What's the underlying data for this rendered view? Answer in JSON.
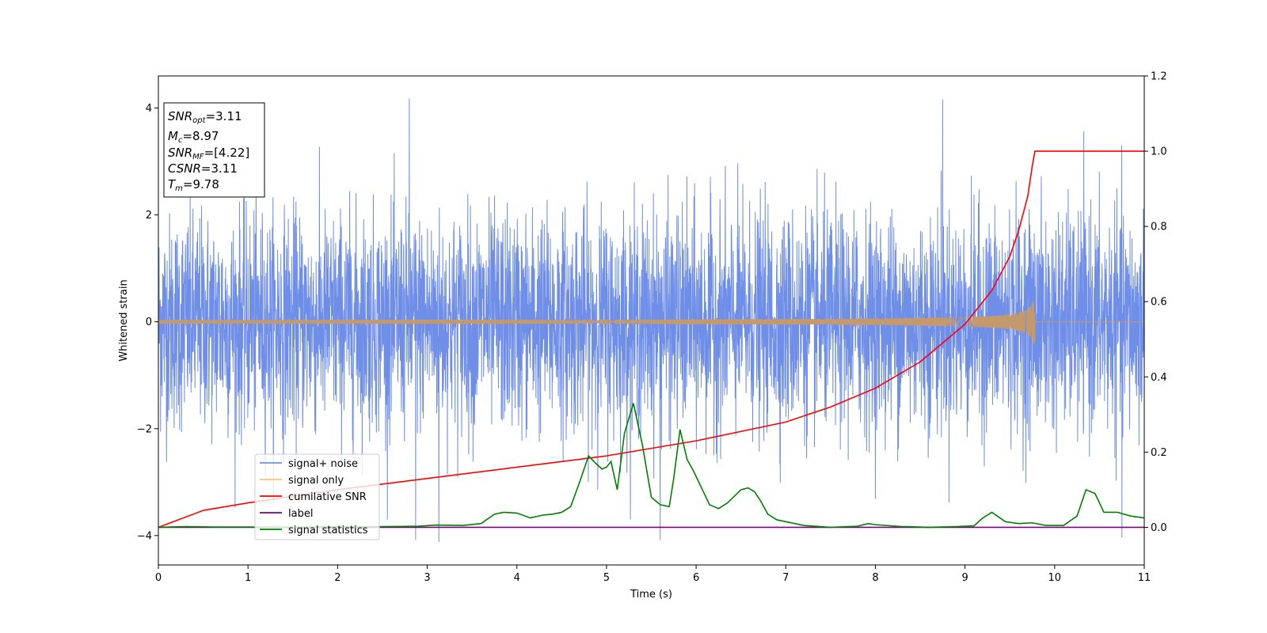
{
  "chart_data": {
    "type": "line",
    "xlabel": "Time (s)",
    "ylabel": "Whitened strain",
    "xlim": [
      0,
      11
    ],
    "ylim": [
      -4.55,
      4.6
    ],
    "y2lim": [
      -0.1,
      1.2
    ],
    "xticks": [
      0,
      1,
      2,
      3,
      4,
      5,
      6,
      7,
      8,
      9,
      10,
      11
    ],
    "yticks": [
      -4,
      -2,
      0,
      2,
      4
    ],
    "y2ticks": [
      0.0,
      0.2,
      0.4,
      0.6,
      0.8,
      1.0,
      1.2
    ],
    "xtick_labels": [
      "0",
      "1",
      "2",
      "3",
      "4",
      "5",
      "6",
      "7",
      "8",
      "9",
      "10",
      "11"
    ],
    "ytick_labels": [
      "−4",
      "−2",
      "0",
      "2",
      "4"
    ],
    "y2tick_labels": [
      "0.0",
      "0.2",
      "0.4",
      "0.6",
      "0.8",
      "1.0",
      "1.2"
    ],
    "legend_position": "lower-left",
    "grid": false,
    "series": [
      {
        "name": "signal+ noise",
        "color": "#6f8ee8",
        "axis": "left",
        "kind": "noise",
        "t_start": 0,
        "t_end": 11,
        "std": 1.0,
        "spikes": [
          [
            2.8,
            4.18
          ],
          [
            8.75,
            4.16
          ],
          [
            3.13,
            -4.12
          ],
          [
            2.87,
            -4.08
          ],
          [
            5.6,
            -4.08
          ],
          [
            10.75,
            -4.04
          ]
        ]
      },
      {
        "name": "signal only",
        "color": "#ffc66b",
        "axis": "left",
        "kind": "chirp",
        "t_start": 0,
        "t_merge": 9.78,
        "peak_amplitude": 0.5
      },
      {
        "name": "cumilative SNR",
        "color": "#ff0000",
        "axis": "right",
        "x": [
          0,
          0.5,
          1,
          2,
          3,
          4,
          5,
          6,
          7,
          7.5,
          8,
          8.5,
          9,
          9.3,
          9.5,
          9.6,
          9.7,
          9.75,
          9.78,
          9.8,
          11
        ],
        "y": [
          0.0,
          0.045,
          0.065,
          0.1,
          0.13,
          0.16,
          0.19,
          0.23,
          0.28,
          0.32,
          0.37,
          0.44,
          0.54,
          0.63,
          0.72,
          0.79,
          0.88,
          0.96,
          1.0,
          1.0,
          1.0
        ]
      },
      {
        "name": "label",
        "color": "#800080",
        "axis": "right",
        "x": [
          0,
          11
        ],
        "y": [
          0.0,
          0.0
        ]
      },
      {
        "name": "signal statistics",
        "color": "#008000",
        "axis": "right",
        "x": [
          0,
          0.3,
          0.6,
          1.0,
          1.5,
          2.0,
          2.5,
          2.9,
          3.1,
          3.4,
          3.6,
          3.75,
          3.85,
          4.0,
          4.15,
          4.3,
          4.4,
          4.5,
          4.6,
          4.7,
          4.8,
          4.88,
          4.95,
          5.0,
          5.05,
          5.12,
          5.2,
          5.3,
          5.4,
          5.5,
          5.6,
          5.7,
          5.75,
          5.82,
          5.9,
          5.97,
          6.05,
          6.15,
          6.25,
          6.35,
          6.5,
          6.58,
          6.65,
          6.72,
          6.8,
          6.9,
          7.0,
          7.2,
          7.5,
          7.8,
          7.92,
          8.0,
          8.3,
          8.6,
          8.9,
          9.1,
          9.2,
          9.3,
          9.45,
          9.6,
          9.75,
          9.9,
          10.1,
          10.25,
          10.35,
          10.45,
          10.55,
          10.7,
          10.85,
          11.0
        ],
        "y": [
          0.0,
          0.002,
          0.001,
          0.001,
          0.0,
          0.002,
          0.002,
          0.003,
          0.006,
          0.005,
          0.01,
          0.035,
          0.04,
          0.038,
          0.025,
          0.033,
          0.035,
          0.04,
          0.055,
          0.12,
          0.19,
          0.17,
          0.155,
          0.16,
          0.175,
          0.1,
          0.25,
          0.33,
          0.22,
          0.08,
          0.06,
          0.055,
          0.13,
          0.26,
          0.18,
          0.15,
          0.11,
          0.06,
          0.05,
          0.065,
          0.1,
          0.105,
          0.095,
          0.07,
          0.035,
          0.02,
          0.015,
          0.005,
          0.0,
          0.003,
          0.01,
          0.007,
          0.002,
          0.0,
          0.002,
          0.004,
          0.025,
          0.04,
          0.015,
          0.01,
          0.012,
          0.005,
          0.005,
          0.03,
          0.1,
          0.09,
          0.04,
          0.04,
          0.03,
          0.025
        ]
      }
    ],
    "annotation": {
      "lines": [
        {
          "var": "SNR",
          "sub": "opt",
          "text": "=3.11"
        },
        {
          "var": "M",
          "sub": "c",
          "text": "=8.97"
        },
        {
          "var": "SNR",
          "sub": "MF",
          "text": "=[4.22]"
        },
        {
          "var": "CSNR",
          "sub": "",
          "text": "=3.11"
        },
        {
          "var": "T",
          "sub": "m",
          "text": "=9.78"
        }
      ]
    }
  }
}
